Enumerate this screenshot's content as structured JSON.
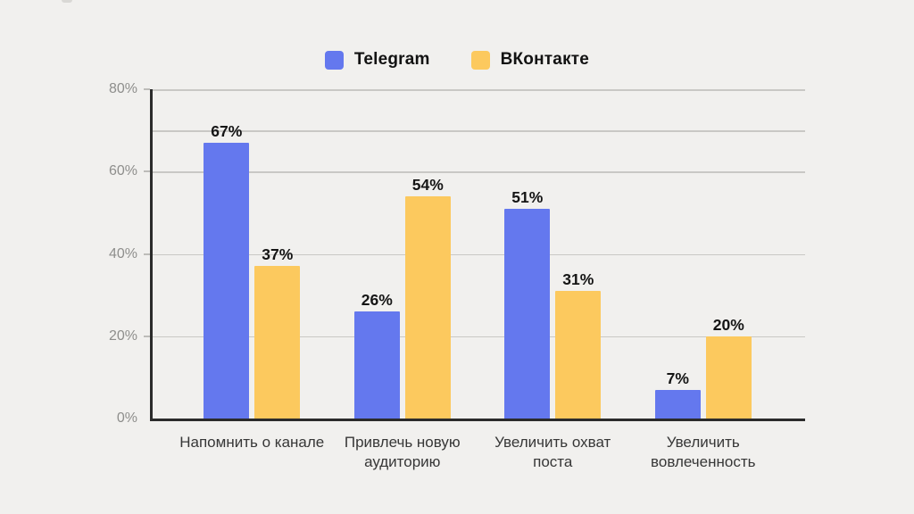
{
  "page": {
    "background": "#f1f0ee"
  },
  "chart_data": {
    "type": "bar",
    "title": "",
    "categories": [
      "Напомнить о канале",
      "Привлечь новую\nаудиторию",
      "Увеличить охват\nпоста",
      "Увеличить\nвовлеченность"
    ],
    "series": [
      {
        "name": "Telegram",
        "color": "#6478ee",
        "values": [
          67,
          26,
          51,
          7
        ]
      },
      {
        "name": "ВКонтакте",
        "color": "#fcc95e",
        "values": [
          37,
          54,
          31,
          20
        ]
      }
    ],
    "value_label_format": "{v}%",
    "value_labels": {
      "Telegram": [
        "67%",
        "26%",
        "51%",
        "7%"
      ],
      "ВКонтакте": [
        "37%",
        "54%",
        "31%",
        "20%"
      ]
    },
    "ylim": [
      0,
      80
    ],
    "yticks": [
      {
        "value": 80,
        "label": "80%"
      },
      {
        "value": 60,
        "label": "60%"
      },
      {
        "value": 40,
        "label": "40%"
      },
      {
        "value": 20,
        "label": "20%"
      },
      {
        "value": 0,
        "label": "0%"
      }
    ],
    "gridline_values": [
      80,
      70,
      60,
      40,
      20
    ],
    "grid": "horizontal",
    "legend_position": "top",
    "colors": {
      "axis": "#2b2b2b",
      "gridline": "#c9c8c5",
      "y_tick_label": "#8e8e8c",
      "category_label": "#373737",
      "value_label": "#151515",
      "background": "#f1f0ee"
    }
  }
}
